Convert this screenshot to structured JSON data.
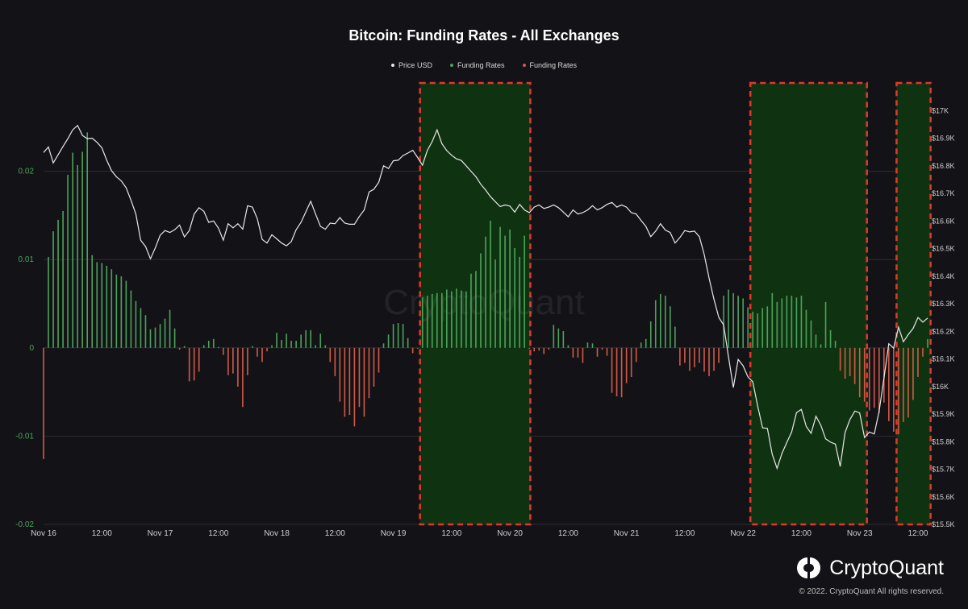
{
  "chart_data": {
    "type": "bar+line",
    "title": "Bitcoin: Funding Rates - All Exchanges",
    "legend": [
      "Price USD",
      "Funding Rates",
      "Funding Rates"
    ],
    "colors": {
      "price": "#e8e8e8",
      "positive": "#4ca35a",
      "negative": "#d25a47",
      "highlight_fill": "#0f3311",
      "highlight_border": "#e8352b",
      "grid": "#2c2c32"
    },
    "x_ticks": [
      "Nov 16",
      "12:00",
      "Nov 17",
      "12:00",
      "Nov 18",
      "12:00",
      "Nov 19",
      "12:00",
      "Nov 20",
      "12:00",
      "Nov 21",
      "12:00",
      "Nov 22",
      "12:00",
      "Nov 23",
      "12:00"
    ],
    "x_range_hours": [
      0,
      182
    ],
    "y_left": {
      "ticks": [
        "0.02",
        "0.01",
        "0",
        "-0.01",
        "-0.02"
      ],
      "range": [
        -0.02,
        0.03
      ]
    },
    "y_right": {
      "ticks": [
        "$17K",
        "$16.9K",
        "$16.8K",
        "$16.7K",
        "$16.6K",
        "$16.5K",
        "$16.4K",
        "$16.3K",
        "$16.2K",
        "$16.1K",
        "$16K",
        "$15.9K",
        "$15.8K",
        "$15.7K",
        "$15.6K",
        "$15.5K"
      ],
      "range": [
        15500,
        17100
      ]
    },
    "funding_rates": [
      [
        0,
        -0.0126
      ],
      [
        1,
        0.0103
      ],
      [
        2,
        0.0132
      ],
      [
        3,
        0.0145
      ],
      [
        4,
        0.0155
      ],
      [
        5,
        0.0196
      ],
      [
        6,
        0.0221
      ],
      [
        7,
        0.0207
      ],
      [
        8,
        0.0222
      ],
      [
        9,
        0.0244
      ],
      [
        10,
        0.0105
      ],
      [
        11,
        0.0097
      ],
      [
        12,
        0.0096
      ],
      [
        13,
        0.0093
      ],
      [
        14,
        0.0089
      ],
      [
        15,
        0.0083
      ],
      [
        16,
        0.0081
      ],
      [
        17,
        0.0076
      ],
      [
        18,
        0.0065
      ],
      [
        19,
        0.0053
      ],
      [
        20,
        0.0045
      ],
      [
        21,
        0.0037
      ],
      [
        22,
        0.0021
      ],
      [
        23,
        0.0023
      ],
      [
        24,
        0.0027
      ],
      [
        25,
        0.0033
      ],
      [
        26,
        0.0043
      ],
      [
        27,
        0.0022
      ],
      [
        28,
        -0.0002
      ],
      [
        29,
        0.0002
      ],
      [
        30,
        -0.0038
      ],
      [
        31,
        -0.0037
      ],
      [
        32,
        -0.0027
      ],
      [
        33,
        0.0003
      ],
      [
        34,
        0.0008
      ],
      [
        35,
        0.001
      ],
      [
        36,
        0.0001
      ],
      [
        37,
        -0.0008
      ],
      [
        38,
        -0.0031
      ],
      [
        39,
        -0.0029
      ],
      [
        40,
        -0.0044
      ],
      [
        41,
        -0.0067
      ],
      [
        42,
        -0.0031
      ],
      [
        43,
        0.0002
      ],
      [
        44,
        -0.001
      ],
      [
        45,
        -0.0016
      ],
      [
        46,
        -0.0004
      ],
      [
        47,
        0.0003
      ],
      [
        48,
        0.0017
      ],
      [
        49,
        0.0009
      ],
      [
        50,
        0.0016
      ],
      [
        51,
        0.0008
      ],
      [
        52,
        0.0008
      ],
      [
        53,
        0.0015
      ],
      [
        54,
        0.002
      ],
      [
        55,
        0.002
      ],
      [
        56,
        0.0003
      ],
      [
        57,
        0.0016
      ],
      [
        58,
        0.0003
      ],
      [
        59,
        -0.0016
      ],
      [
        60,
        -0.0032
      ],
      [
        61,
        -0.0061
      ],
      [
        62,
        -0.0078
      ],
      [
        63,
        -0.0076
      ],
      [
        64,
        -0.0089
      ],
      [
        65,
        -0.0067
      ],
      [
        66,
        -0.0078
      ],
      [
        67,
        -0.0057
      ],
      [
        68,
        -0.0044
      ],
      [
        69,
        -0.0028
      ],
      [
        70,
        0.0005
      ],
      [
        71,
        0.0015
      ],
      [
        72,
        0.0027
      ],
      [
        73,
        0.0028
      ],
      [
        74,
        0.0027
      ],
      [
        75,
        0.0011
      ],
      [
        76,
        -0.0006
      ],
      [
        77,
        -0.0001
      ],
      [
        78,
        0.0057
      ],
      [
        79,
        0.0059
      ],
      [
        80,
        0.0061
      ],
      [
        81,
        0.0062
      ],
      [
        82,
        0.0062
      ],
      [
        83,
        0.0066
      ],
      [
        84,
        0.0064
      ],
      [
        85,
        0.0067
      ],
      [
        86,
        0.0065
      ],
      [
        87,
        0.0064
      ],
      [
        88,
        0.0084
      ],
      [
        89,
        0.0087
      ],
      [
        90,
        0.0107
      ],
      [
        91,
        0.0126
      ],
      [
        92,
        0.0144
      ],
      [
        93,
        0.01
      ],
      [
        94,
        0.0137
      ],
      [
        95,
        0.0127
      ],
      [
        96,
        0.0134
      ],
      [
        97,
        0.0113
      ],
      [
        98,
        0.0103
      ],
      [
        99,
        0.0127
      ],
      [
        100,
        -0.0001
      ],
      [
        101,
        -0.0004
      ],
      [
        102,
        -0.0003
      ],
      [
        103,
        -0.0007
      ],
      [
        104,
        -0.0002
      ],
      [
        105,
        0.0026
      ],
      [
        106,
        0.0022
      ],
      [
        107,
        0.0019
      ],
      [
        108,
        0.0003
      ],
      [
        109,
        -0.0011
      ],
      [
        110,
        -0.0011
      ],
      [
        111,
        -0.0017
      ],
      [
        112,
        0.0006
      ],
      [
        113,
        0.0005
      ],
      [
        114,
        -0.001
      ],
      [
        115,
        -0.0002
      ],
      [
        116,
        -0.0009
      ],
      [
        117,
        -0.0051
      ],
      [
        118,
        -0.0055
      ],
      [
        119,
        -0.0056
      ],
      [
        120,
        -0.004
      ],
      [
        121,
        -0.0033
      ],
      [
        122,
        -0.0016
      ],
      [
        123,
        0.0006
      ],
      [
        124,
        0.001
      ],
      [
        125,
        0.003
      ],
      [
        126,
        0.0054
      ],
      [
        127,
        0.0061
      ],
      [
        128,
        0.0059
      ],
      [
        129,
        0.0047
      ],
      [
        130,
        0.0024
      ],
      [
        131,
        -0.002
      ],
      [
        132,
        -0.0017
      ],
      [
        133,
        -0.0026
      ],
      [
        134,
        -0.0022
      ],
      [
        135,
        -0.0017
      ],
      [
        136,
        -0.0027
      ],
      [
        137,
        -0.0032
      ],
      [
        138,
        -0.0026
      ],
      [
        139,
        -0.0017
      ],
      [
        140,
        0.0059
      ],
      [
        141,
        0.0066
      ],
      [
        142,
        0.0062
      ],
      [
        143,
        0.0059
      ],
      [
        144,
        0.0056
      ],
      [
        145,
        0.0046
      ],
      [
        146,
        0.0041
      ],
      [
        147,
        0.0039
      ],
      [
        148,
        0.0045
      ],
      [
        149,
        0.0047
      ],
      [
        150,
        0.0062
      ],
      [
        151,
        0.0052
      ],
      [
        152,
        0.0056
      ],
      [
        153,
        0.0059
      ],
      [
        154,
        0.0059
      ],
      [
        155,
        0.0057
      ],
      [
        156,
        0.0059
      ],
      [
        157,
        0.0043
      ],
      [
        158,
        0.0031
      ],
      [
        159,
        0.0015
      ],
      [
        160,
        0.0004
      ],
      [
        161,
        0.0052
      ],
      [
        162,
        0.002
      ],
      [
        163,
        0.0008
      ],
      [
        164,
        -0.0026
      ],
      [
        165,
        -0.0035
      ],
      [
        166,
        -0.0032
      ],
      [
        167,
        -0.0041
      ],
      [
        168,
        -0.0056
      ],
      [
        169,
        -0.0061
      ],
      [
        170,
        -0.0071
      ],
      [
        171,
        -0.0068
      ],
      [
        172,
        -0.0074
      ],
      [
        173,
        -0.0062
      ],
      [
        174,
        -0.0083
      ],
      [
        175,
        -0.0095
      ],
      [
        176,
        -0.0098
      ],
      [
        177,
        -0.0084
      ],
      [
        178,
        -0.0079
      ],
      [
        179,
        -0.0059
      ],
      [
        180,
        -0.0033
      ],
      [
        181,
        -0.001
      ],
      [
        182,
        0.001
      ]
    ],
    "price": [
      [
        0,
        16848
      ],
      [
        1,
        16868
      ],
      [
        2,
        16810
      ],
      [
        3,
        16840
      ],
      [
        4,
        16870
      ],
      [
        5,
        16898
      ],
      [
        6,
        16930
      ],
      [
        7,
        16946
      ],
      [
        8,
        16910
      ],
      [
        9,
        16898
      ],
      [
        10,
        16900
      ],
      [
        11,
        16885
      ],
      [
        12,
        16865
      ],
      [
        13,
        16820
      ],
      [
        14,
        16782
      ],
      [
        15,
        16760
      ],
      [
        16,
        16745
      ],
      [
        17,
        16720
      ],
      [
        18,
        16675
      ],
      [
        19,
        16625
      ],
      [
        20,
        16530
      ],
      [
        21,
        16507
      ],
      [
        22,
        16463
      ],
      [
        23,
        16502
      ],
      [
        24,
        16548
      ],
      [
        25,
        16565
      ],
      [
        26,
        16558
      ],
      [
        27,
        16568
      ],
      [
        28,
        16585
      ],
      [
        29,
        16542
      ],
      [
        30,
        16565
      ],
      [
        31,
        16625
      ],
      [
        32,
        16648
      ],
      [
        33,
        16635
      ],
      [
        34,
        16595
      ],
      [
        35,
        16600
      ],
      [
        36,
        16574
      ],
      [
        37,
        16530
      ],
      [
        38,
        16590
      ],
      [
        39,
        16575
      ],
      [
        40,
        16590
      ],
      [
        41,
        16570
      ],
      [
        42,
        16655
      ],
      [
        43,
        16650
      ],
      [
        44,
        16608
      ],
      [
        45,
        16533
      ],
      [
        46,
        16520
      ],
      [
        47,
        16550
      ],
      [
        48,
        16535
      ],
      [
        49,
        16520
      ],
      [
        50,
        16510
      ],
      [
        51,
        16525
      ],
      [
        52,
        16568
      ],
      [
        53,
        16595
      ],
      [
        54,
        16633
      ],
      [
        55,
        16671
      ],
      [
        56,
        16625
      ],
      [
        57,
        16580
      ],
      [
        58,
        16570
      ],
      [
        59,
        16592
      ],
      [
        60,
        16590
      ],
      [
        61,
        16612
      ],
      [
        62,
        16592
      ],
      [
        63,
        16588
      ],
      [
        64,
        16588
      ],
      [
        65,
        16616
      ],
      [
        66,
        16640
      ],
      [
        67,
        16705
      ],
      [
        68,
        16715
      ],
      [
        69,
        16740
      ],
      [
        70,
        16800
      ],
      [
        71,
        16790
      ],
      [
        72,
        16818
      ],
      [
        73,
        16820
      ],
      [
        74,
        16837
      ],
      [
        75,
        16846
      ],
      [
        76,
        16856
      ],
      [
        77,
        16830
      ],
      [
        78,
        16802
      ],
      [
        79,
        16855
      ],
      [
        80,
        16888
      ],
      [
        81,
        16930
      ],
      [
        82,
        16880
      ],
      [
        83,
        16855
      ],
      [
        84,
        16838
      ],
      [
        85,
        16825
      ],
      [
        86,
        16819
      ],
      [
        87,
        16800
      ],
      [
        88,
        16780
      ],
      [
        89,
        16760
      ],
      [
        90,
        16733
      ],
      [
        91,
        16712
      ],
      [
        92,
        16688
      ],
      [
        93,
        16670
      ],
      [
        94,
        16652
      ],
      [
        95,
        16658
      ],
      [
        96,
        16654
      ],
      [
        97,
        16632
      ],
      [
        98,
        16660
      ],
      [
        99,
        16640
      ],
      [
        100,
        16630
      ],
      [
        101,
        16650
      ],
      [
        102,
        16658
      ],
      [
        103,
        16645
      ],
      [
        104,
        16650
      ],
      [
        105,
        16658
      ],
      [
        106,
        16648
      ],
      [
        107,
        16632
      ],
      [
        108,
        16615
      ],
      [
        109,
        16640
      ],
      [
        110,
        16625
      ],
      [
        111,
        16630
      ],
      [
        112,
        16640
      ],
      [
        113,
        16655
      ],
      [
        114,
        16640
      ],
      [
        115,
        16648
      ],
      [
        116,
        16660
      ],
      [
        117,
        16667
      ],
      [
        118,
        16650
      ],
      [
        119,
        16658
      ],
      [
        120,
        16650
      ],
      [
        121,
        16630
      ],
      [
        122,
        16625
      ],
      [
        123,
        16602
      ],
      [
        124,
        16580
      ],
      [
        125,
        16543
      ],
      [
        126,
        16563
      ],
      [
        127,
        16590
      ],
      [
        128,
        16567
      ],
      [
        129,
        16558
      ],
      [
        130,
        16520
      ],
      [
        131,
        16540
      ],
      [
        132,
        16565
      ],
      [
        133,
        16560
      ],
      [
        134,
        16563
      ],
      [
        135,
        16543
      ],
      [
        136,
        16478
      ],
      [
        137,
        16393
      ],
      [
        138,
        16317
      ],
      [
        139,
        16250
      ],
      [
        140,
        16223
      ],
      [
        141,
        16107
      ],
      [
        142,
        15996
      ],
      [
        143,
        16098
      ],
      [
        144,
        16075
      ],
      [
        145,
        16035
      ],
      [
        146,
        16017
      ],
      [
        147,
        15930
      ],
      [
        148,
        15850
      ],
      [
        149,
        15848
      ],
      [
        150,
        15754
      ],
      [
        151,
        15703
      ],
      [
        152,
        15757
      ],
      [
        153,
        15797
      ],
      [
        154,
        15835
      ],
      [
        155,
        15905
      ],
      [
        156,
        15917
      ],
      [
        157,
        15855
      ],
      [
        158,
        15830
      ],
      [
        159,
        15892
      ],
      [
        160,
        15860
      ],
      [
        161,
        15810
      ],
      [
        162,
        15798
      ],
      [
        163,
        15791
      ],
      [
        164,
        15710
      ],
      [
        165,
        15833
      ],
      [
        166,
        15880
      ],
      [
        167,
        15911
      ],
      [
        168,
        15904
      ],
      [
        169,
        15815
      ],
      [
        170,
        15835
      ],
      [
        171,
        15828
      ],
      [
        172,
        15910
      ],
      [
        173,
        16030
      ],
      [
        174,
        16155
      ],
      [
        175,
        16139
      ],
      [
        176,
        16215
      ],
      [
        177,
        16162
      ],
      [
        178,
        16188
      ],
      [
        179,
        16210
      ],
      [
        180,
        16250
      ],
      [
        181,
        16233
      ],
      [
        182,
        16248
      ]
    ],
    "highlight_ranges": [
      [
        77.5,
        100.2
      ],
      [
        145.5,
        169.5
      ],
      [
        175.6,
        182.6
      ]
    ],
    "watermark": "CryptoQuant"
  },
  "branding": {
    "name": "CryptoQuant",
    "copyright": "© 2022. CryptoQuant All rights reserved."
  }
}
